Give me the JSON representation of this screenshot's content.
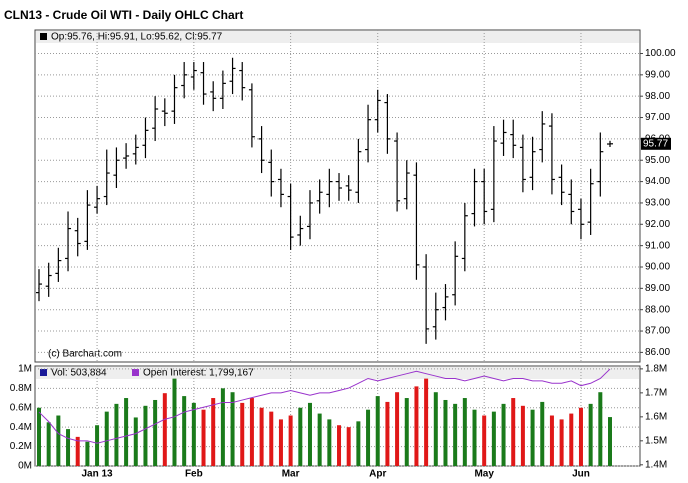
{
  "chart_data": {
    "type": "ohlc",
    "title": "CLN13 - Crude Oil WTI - Daily OHLC Chart",
    "ohlc_legend": "Op:95.76, Hi:95.91, Lo:95.62, Cl:95.77",
    "source": "(c) Barchart.com",
    "categories": [
      null,
      null,
      null,
      null,
      null,
      null,
      "Jan 13",
      null,
      null,
      null,
      null,
      null,
      null,
      null,
      null,
      null,
      "Feb",
      null,
      null,
      null,
      null,
      null,
      null,
      null,
      null,
      null,
      "Mar",
      null,
      null,
      null,
      null,
      null,
      null,
      null,
      null,
      "Apr",
      null,
      null,
      null,
      null,
      null,
      null,
      null,
      null,
      null,
      null,
      "May",
      null,
      null,
      null,
      null,
      null,
      null,
      null,
      null,
      null,
      "Jun",
      null,
      null,
      null
    ],
    "open": [
      88.8,
      89.1,
      89.7,
      90.4,
      91.7,
      91.2,
      92.8,
      93.3,
      94.3,
      95.1,
      95.3,
      95.7,
      96.5,
      97.3,
      97.3,
      98.5,
      98.9,
      99.1,
      98.2,
      97.9,
      98.7,
      99.2,
      98.3,
      96.0,
      94.9,
      94.1,
      93.3,
      91.5,
      91.9,
      93.1,
      93.4,
      94.0,
      93.8,
      93.5,
      95.5,
      96.9,
      97.7,
      95.9,
      93.2,
      94.3,
      90.0,
      87.2,
      88.1,
      88.7,
      90.4,
      92.5,
      94.0,
      92.7,
      95.8,
      96.2,
      95.6,
      94.2,
      95.5,
      96.6,
      94.2,
      93.4,
      92.7,
      92.1,
      94.0,
      95.76
    ],
    "high": [
      89.9,
      90.2,
      90.9,
      92.6,
      92.3,
      93.6,
      93.8,
      95.5,
      95.6,
      95.8,
      96.2,
      97.0,
      98.0,
      97.9,
      99.0,
      99.6,
      99.6,
      99.6,
      98.7,
      99.2,
      99.8,
      99.6,
      98.6,
      96.6,
      95.5,
      94.6,
      93.9,
      92.4,
      93.6,
      94.1,
      94.6,
      94.4,
      94.3,
      96.0,
      97.6,
      98.3,
      98.1,
      96.3,
      95.0,
      94.9,
      90.6,
      88.8,
      89.2,
      91.2,
      93.0,
      94.6,
      94.6,
      96.6,
      96.9,
      96.9,
      96.2,
      96.1,
      97.3,
      97.2,
      94.8,
      94.1,
      93.2,
      94.6,
      96.3,
      95.91
    ],
    "low": [
      88.4,
      88.6,
      89.3,
      89.8,
      90.5,
      90.8,
      92.5,
      92.9,
      93.7,
      94.6,
      94.8,
      95.1,
      95.9,
      96.6,
      96.7,
      97.9,
      98.3,
      97.6,
      97.3,
      97.4,
      98.1,
      97.8,
      95.6,
      94.4,
      93.3,
      92.8,
      90.8,
      91.0,
      91.3,
      92.5,
      92.8,
      93.1,
      93.1,
      93.0,
      94.9,
      96.3,
      95.3,
      92.6,
      92.7,
      89.4,
      86.4,
      86.6,
      87.5,
      88.2,
      89.8,
      91.9,
      92.0,
      92.1,
      95.2,
      95.1,
      93.5,
      93.6,
      94.9,
      93.4,
      92.9,
      92.0,
      91.3,
      91.5,
      93.3,
      95.62
    ],
    "close": [
      89.2,
      89.6,
      90.3,
      91.8,
      91.1,
      92.9,
      93.2,
      94.4,
      95.0,
      95.2,
      95.6,
      96.4,
      97.4,
      97.2,
      98.4,
      99.0,
      99.2,
      98.1,
      97.9,
      98.6,
      99.3,
      98.4,
      96.1,
      95.0,
      94.0,
      93.4,
      91.4,
      91.8,
      93.0,
      93.5,
      94.0,
      93.7,
      93.6,
      95.4,
      96.9,
      97.8,
      96.0,
      93.1,
      94.4,
      90.1,
      87.1,
      88.0,
      88.6,
      90.5,
      92.4,
      94.0,
      92.6,
      95.9,
      96.3,
      95.7,
      94.1,
      95.4,
      96.7,
      94.1,
      93.5,
      92.6,
      92.0,
      93.9,
      95.4,
      95.77
    ],
    "color": "#000000",
    "ylim": [
      85.55,
      101.1
    ],
    "yticks": [
      {
        "value": 86,
        "label": "86.00"
      },
      {
        "value": 87,
        "label": "87.00"
      },
      {
        "value": 88,
        "label": "88.00"
      },
      {
        "value": 89,
        "label": "89.00"
      },
      {
        "value": 90,
        "label": "90.00"
      },
      {
        "value": 91,
        "label": "91.00"
      },
      {
        "value": 92,
        "label": "92.00"
      },
      {
        "value": 93,
        "label": "93.00"
      },
      {
        "value": 94,
        "label": "94.00"
      },
      {
        "value": 95,
        "label": "95.00"
      },
      {
        "value": 96,
        "label": "96.00"
      },
      {
        "value": 97,
        "label": "97.00"
      },
      {
        "value": 98,
        "label": "98.00"
      },
      {
        "value": 99,
        "label": "99.00"
      },
      {
        "value": 100,
        "label": "100.00"
      }
    ],
    "grid": true,
    "volume_legend": "Vol: 503,884",
    "volume": [
      600000,
      450000,
      520000,
      380000,
      300000,
      250000,
      420000,
      560000,
      640000,
      700000,
      500000,
      620000,
      680000,
      750000,
      900000,
      720000,
      650000,
      580000,
      700000,
      800000,
      760000,
      650000,
      700000,
      600000,
      560000,
      480000,
      520000,
      600000,
      650000,
      540000,
      480000,
      420000,
      400000,
      460000,
      580000,
      720000,
      660000,
      760000,
      700000,
      820000,
      900000,
      760000,
      680000,
      640000,
      700000,
      580000,
      520000,
      560000,
      640000,
      700000,
      620000,
      580000,
      660000,
      520000,
      480000,
      540000,
      600000,
      640000,
      760000,
      503884
    ],
    "up_color": "#1a7a1a",
    "down_color": "#e01818",
    "volume_ylim": [
      0,
      1030000
    ],
    "volume_ticks": [
      {
        "value": 0,
        "label": "0M"
      },
      {
        "value": 200000,
        "label": "0.2M"
      },
      {
        "value": 400000,
        "label": "0.4M"
      },
      {
        "value": 600000,
        "label": "0.6M"
      },
      {
        "value": 800000,
        "label": "0.8M"
      },
      {
        "value": 1000000,
        "label": "1M"
      }
    ],
    "oi_legend": "Open Interest: 1,799,167",
    "open_interest": [
      1620000,
      1580000,
      1530000,
      1510000,
      1500000,
      1500000,
      1490000,
      1500000,
      1510000,
      1520000,
      1530000,
      1550000,
      1570000,
      1590000,
      1600000,
      1620000,
      1630000,
      1640000,
      1650000,
      1660000,
      1660000,
      1670000,
      1680000,
      1690000,
      1700000,
      1700000,
      1710000,
      1700000,
      1690000,
      1700000,
      1700000,
      1710000,
      1720000,
      1740000,
      1760000,
      1750000,
      1760000,
      1770000,
      1780000,
      1790000,
      1780000,
      1770000,
      1760000,
      1760000,
      1750000,
      1760000,
      1770000,
      1760000,
      1750000,
      1760000,
      1760000,
      1750000,
      1750000,
      1740000,
      1740000,
      1750000,
      1730000,
      1740000,
      1760000,
      1799167
    ],
    "oi_color": "#9933cc",
    "y2lim": [
      1395000,
      1812000
    ],
    "y2ticks": [
      {
        "value": 1400000,
        "label": "1.4M"
      },
      {
        "value": 1500000,
        "label": "1.5M"
      },
      {
        "value": 1600000,
        "label": "1.6M"
      },
      {
        "value": 1700000,
        "label": "1.7M"
      },
      {
        "value": 1800000,
        "label": "1.8M"
      }
    ]
  }
}
